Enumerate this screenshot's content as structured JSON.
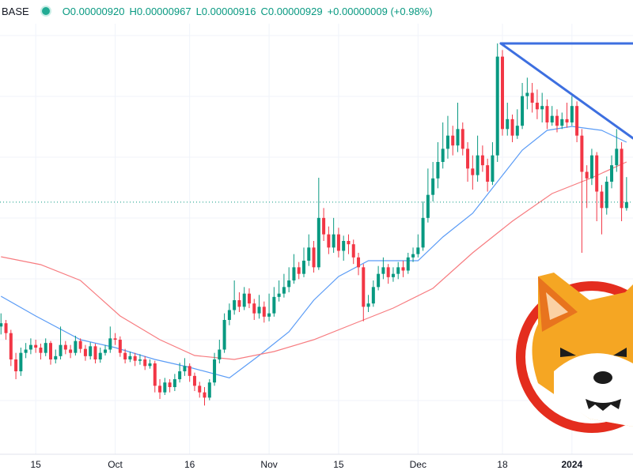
{
  "header": {
    "symbol": "BASE",
    "ohlc": [
      "O0.00000920",
      "H0.00000967",
      "L0.00000916",
      "C0.00000929",
      "+0.00000009 (+0.98%)"
    ]
  },
  "chart_data": {
    "type": "candlestick",
    "up_color": "#089981",
    "down_color": "#f23645",
    "ylim": [
      5.46e-06,
      1.2e-05
    ],
    "xlim": [
      -0.2,
      127.3
    ],
    "xticks": [
      {
        "value": 7,
        "label": "15"
      },
      {
        "value": 23,
        "label": "Oct"
      },
      {
        "value": 38,
        "label": "16"
      },
      {
        "value": 54,
        "label": "Nov"
      },
      {
        "value": 68,
        "label": "15"
      },
      {
        "value": 84,
        "label": "Dec"
      },
      {
        "value": 101,
        "label": "18"
      },
      {
        "value": 115,
        "label": "2024"
      }
    ],
    "open": [
      7.4e-06,
      7.45e-06,
      7.3e-06,
      6.9e-06,
      6.72e-06,
      7e-06,
      7.05e-06,
      7.12e-06,
      7.08e-06,
      7e-06,
      7.15e-06,
      6.9e-06,
      6.95e-06,
      7.12e-06,
      7.05e-06,
      7e-06,
      7.18e-06,
      7.06e-06,
      6.95e-06,
      7.1e-06,
      6.9e-06,
      7e-06,
      7.05e-06,
      7.22e-06,
      7.2e-06,
      7e-06,
      6.9e-06,
      6.95e-06,
      6.88e-06,
      6.9e-06,
      6.8e-06,
      6.84e-06,
      6.5e-06,
      6.4e-06,
      6.55e-06,
      6.48e-06,
      6.6e-06,
      6.72e-06,
      6.8e-06,
      6.65e-06,
      6.5e-06,
      6.4e-06,
      6.32e-06,
      6.55e-06,
      6.9e-06,
      7.05e-06,
      7.5e-06,
      7.65e-06,
      7.8e-06,
      7.7e-06,
      7.9e-06,
      7.75e-06,
      7.6e-06,
      7.7e-06,
      7.55e-06,
      7.6e-06,
      7.85e-06,
      7.9e-06,
      8e-06,
      8.1e-06,
      8.3e-06,
      8.2e-06,
      8.4e-06,
      8.6e-06,
      8.3e-06,
      9.05e-06,
      8.8e-06,
      8.6e-06,
      8.8e-06,
      8.55e-06,
      8.7e-06,
      8.65e-06,
      8.45e-06,
      8.3e-06,
      7.7e-06,
      7.75e-06,
      8e-06,
      8.2e-06,
      8.3e-06,
      8.15e-06,
      8.2e-06,
      8.3e-06,
      8.25e-06,
      8.45e-06,
      8.5e-06,
      8.6e-06,
      9.05e-06,
      9.4e-06,
      9.65e-06,
      9.9e-06,
      1.01e-05,
      1.03e-05,
      1.015e-05,
      1.04e-05,
      1.01e-05,
      9.8e-06,
      9.7e-06,
      1e-05,
      9.85e-06,
      9.6e-06,
      1e-05,
      1.15e-05,
      1.04e-05,
      1.055e-05,
      1.03e-05,
      1.045e-05,
      1.09e-05,
      1.095e-05,
      1.08e-05,
      1.07e-05,
      1.075e-05,
      1.05e-05,
      1.06e-05,
      1.045e-05,
      1.055e-05,
      1.05e-05,
      1.075e-05,
      1.03e-05,
      9.75e-06,
      9.65e-06,
      1e-05,
      9.45e-06,
      9.2e-06,
      9.6e-06,
      9.85e-06,
      1.01e-05,
      9.2e-06
    ],
    "high": [
      7.6e-06,
      7.5e-06,
      7.35e-06,
      7e-06,
      7.08e-06,
      7.15e-06,
      7.22e-06,
      7.2e-06,
      7.14e-06,
      7.22e-06,
      7.18e-06,
      7.05e-06,
      7.4e-06,
      7.18e-06,
      7.12e-06,
      7.26e-06,
      7.22e-06,
      7.12e-06,
      7.16e-06,
      7.14e-06,
      7.08e-06,
      7.12e-06,
      7.4e-06,
      7.3e-06,
      7.25e-06,
      7.06e-06,
      7.02e-06,
      7e-06,
      6.98e-06,
      6.95e-06,
      6.9e-06,
      6.88e-06,
      6.6e-06,
      6.62e-06,
      6.6e-06,
      6.68e-06,
      6.85e-06,
      6.92e-06,
      6.84e-06,
      6.7e-06,
      6.56e-06,
      6.48e-06,
      6.6e-06,
      7e-06,
      7.2e-06,
      7.6e-06,
      7.75e-06,
      8.1e-06,
      7.92e-06,
      8e-06,
      7.98e-06,
      7.82e-06,
      7.88e-06,
      7.78e-06,
      7.9e-06,
      8e-06,
      8.1e-06,
      8.2e-06,
      8.3e-06,
      8.5e-06,
      8.38e-06,
      8.6e-06,
      8.8e-06,
      8.7e-06,
      9.66e-06,
      9.2e-06,
      8.92e-06,
      9.05e-06,
      8.9e-06,
      8.78e-06,
      8.8e-06,
      8.72e-06,
      8.52e-06,
      8.35e-06,
      7.88e-06,
      8.1e-06,
      8.32e-06,
      8.45e-06,
      8.35e-06,
      8.3e-06,
      8.38e-06,
      8.4e-06,
      8.52e-06,
      8.6e-06,
      8.8e-06,
      9.3e-06,
      9.8e-06,
      9.9e-06,
      1.02e-05,
      1.05e-05,
      1.06e-05,
      1.045e-05,
      1.08e-05,
      1.05e-05,
      1.02e-05,
      1e-05,
      1.03e-05,
      1.015e-05,
      9.95e-06,
      1.02e-05,
      1.17e-05,
      1.16e-05,
      1.08e-05,
      1.062e-05,
      1.07e-05,
      1.11e-05,
      1.118e-05,
      1.11e-05,
      1.1e-05,
      1.095e-05,
      1.085e-05,
      1.075e-05,
      1.07e-05,
      1.065e-05,
      1.08e-05,
      1.09e-05,
      1.082e-05,
      1.04e-05,
      9.85e-06,
      1.01e-05,
      1.005e-05,
      9.55e-06,
      9.68e-06,
      1e-05,
      1.04e-05,
      1.02e-05,
      9.67e-06
    ],
    "low": [
      7.28e-06,
      7.2e-06,
      6.8e-06,
      6.6e-06,
      6.65e-06,
      6.92e-06,
      6.98e-06,
      7e-06,
      6.9e-06,
      6.95e-06,
      6.82e-06,
      6.84e-06,
      6.9e-06,
      6.98e-06,
      6.92e-06,
      6.96e-06,
      7e-06,
      6.88e-06,
      6.9e-06,
      6.84e-06,
      6.85e-06,
      6.96e-06,
      7e-06,
      7.12e-06,
      6.94e-06,
      6.84e-06,
      6.86e-06,
      6.8e-06,
      6.82e-06,
      6.74e-06,
      6.76e-06,
      6.4e-06,
      6.3e-06,
      6.36e-06,
      6.4e-06,
      6.42e-06,
      6.55e-06,
      6.65e-06,
      6.56e-06,
      6.42e-06,
      6.32e-06,
      6.2e-06,
      6.28e-06,
      6.5e-06,
      6.84e-06,
      7e-06,
      7.42e-06,
      7.58e-06,
      7.62e-06,
      7.65e-06,
      7.68e-06,
      7.5e-06,
      7.52e-06,
      7.46e-06,
      7.48e-06,
      7.55e-06,
      7.78e-06,
      7.84e-06,
      7.92e-06,
      8.05e-06,
      8.12e-06,
      8.15e-06,
      8.32e-06,
      8.22e-06,
      8.26e-06,
      8.7e-06,
      8.5e-06,
      8.52e-06,
      8.45e-06,
      8.4e-06,
      8.5e-06,
      8.35e-06,
      8.18e-06,
      7.48e-06,
      7.62e-06,
      7.7e-06,
      7.95e-06,
      8.12e-06,
      8.05e-06,
      8.08e-06,
      8.12e-06,
      8.15e-06,
      8.2e-06,
      8.38e-06,
      8.45e-06,
      8.55e-06,
      8.98e-06,
      9.3e-06,
      9.5e-06,
      9.8e-06,
      9.95e-06,
      1e-05,
      1.005e-05,
      1e-05,
      9.6e-06,
      9.48e-06,
      9.6e-06,
      9.75e-06,
      9.45e-06,
      9.55e-06,
      9.9e-06,
      1.03e-05,
      1.03e-05,
      1.02e-05,
      1.025e-05,
      1.04e-05,
      1.07e-05,
      1.065e-05,
      1.055e-05,
      1.05e-05,
      1.04e-05,
      1.045e-05,
      1.035e-05,
      1.04e-05,
      1.042e-05,
      1.045e-05,
      1.02e-05,
      8.52e-06,
      9.2e-06,
      9.55e-06,
      9e-06,
      8.8e-06,
      9.1e-06,
      9.5e-06,
      9.75e-06,
      9e-06,
      9.16e-06
    ],
    "close": [
      7.45e-06,
      7.3e-06,
      6.9e-06,
      6.72e-06,
      7e-06,
      7.05e-06,
      7.12e-06,
      7.08e-06,
      7e-06,
      7.15e-06,
      6.9e-06,
      6.95e-06,
      7.12e-06,
      7.05e-06,
      7e-06,
      7.18e-06,
      7.06e-06,
      6.95e-06,
      7.1e-06,
      6.9e-06,
      7e-06,
      7.05e-06,
      7.22e-06,
      7.2e-06,
      7e-06,
      6.9e-06,
      6.95e-06,
      6.88e-06,
      6.9e-06,
      6.8e-06,
      6.84e-06,
      6.5e-06,
      6.4e-06,
      6.55e-06,
      6.48e-06,
      6.6e-06,
      6.72e-06,
      6.8e-06,
      6.65e-06,
      6.5e-06,
      6.4e-06,
      6.32e-06,
      6.55e-06,
      6.9e-06,
      7.05e-06,
      7.5e-06,
      7.65e-06,
      7.8e-06,
      7.7e-06,
      7.9e-06,
      7.75e-06,
      7.6e-06,
      7.7e-06,
      7.55e-06,
      7.6e-06,
      7.85e-06,
      7.9e-06,
      8e-06,
      8.1e-06,
      8.3e-06,
      8.2e-06,
      8.4e-06,
      8.6e-06,
      8.3e-06,
      9.05e-06,
      8.8e-06,
      8.6e-06,
      8.8e-06,
      8.55e-06,
      8.7e-06,
      8.65e-06,
      8.45e-06,
      8.3e-06,
      7.7e-06,
      7.75e-06,
      8e-06,
      8.2e-06,
      8.3e-06,
      8.15e-06,
      8.2e-06,
      8.3e-06,
      8.25e-06,
      8.45e-06,
      8.5e-06,
      8.6e-06,
      9.05e-06,
      9.4e-06,
      9.65e-06,
      9.9e-06,
      1.01e-05,
      1.03e-05,
      1.015e-05,
      1.04e-05,
      1.01e-05,
      9.8e-06,
      9.7e-06,
      1e-05,
      9.85e-06,
      9.6e-06,
      1e-05,
      1.15e-05,
      1.04e-05,
      1.055e-05,
      1.03e-05,
      1.045e-05,
      1.09e-05,
      1.095e-05,
      1.08e-05,
      1.07e-05,
      1.075e-05,
      1.05e-05,
      1.06e-05,
      1.045e-05,
      1.055e-05,
      1.05e-05,
      1.075e-05,
      1.03e-05,
      9.75e-06,
      9.65e-06,
      1e-05,
      9.45e-06,
      9.2e-06,
      9.6e-06,
      9.85e-06,
      1.01e-05,
      9.2e-06,
      9.29e-06
    ],
    "lines": [
      {
        "color": "#5b9cf6",
        "x": [
          0,
          7,
          16,
          23,
          31,
          38,
          46,
          52,
          58,
          63,
          68,
          74,
          79,
          84,
          89,
          95,
          100,
          105,
          110,
          115,
          121,
          126
        ],
        "values": [
          7.86e-06,
          7.56e-06,
          7.2e-06,
          7.08e-06,
          6.9e-06,
          6.78e-06,
          6.62e-06,
          6.96e-06,
          7.32e-06,
          7.8e-06,
          8.16e-06,
          8.4e-06,
          8.4e-06,
          8.4e-06,
          8.76e-06,
          9.12e-06,
          9.6e-06,
          1.008e-05,
          1.038e-05,
          1.044e-05,
          1.038e-05,
          1.02e-05
        ]
      },
      {
        "color": "#f77c80",
        "x": [
          0,
          8,
          16,
          24,
          32,
          39,
          47,
          55,
          63,
          71,
          79,
          87,
          95,
          103,
          111,
          119,
          126
        ],
        "values": [
          8.46e-06,
          8.34e-06,
          8.1e-06,
          7.56e-06,
          7.2e-06,
          6.96e-06,
          6.9e-06,
          7.02e-06,
          7.2e-06,
          7.44e-06,
          7.68e-06,
          7.98e-06,
          8.52e-06,
          9e-06,
          9.42e-06,
          9.66e-06,
          9.9e-06
        ]
      }
    ]
  }
}
